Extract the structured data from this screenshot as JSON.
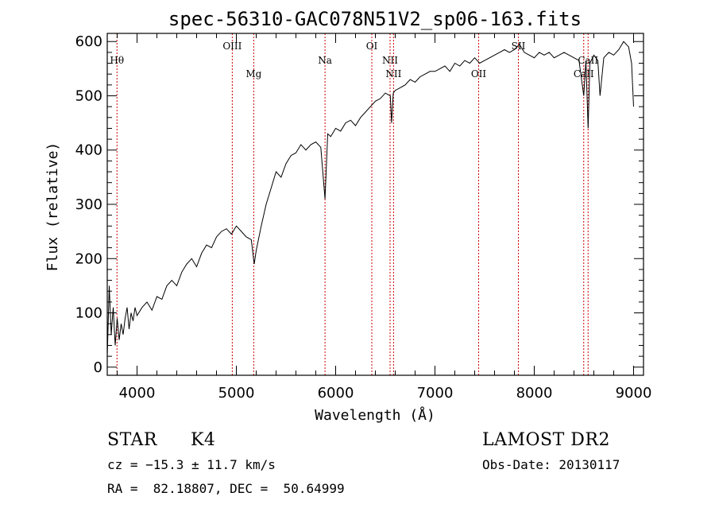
{
  "chart_data": {
    "type": "line",
    "title": "spec-56310-GAC078N51V2_sp06-163.fits",
    "xlabel": "Wavelength (Å)",
    "ylabel": "Flux (relative)",
    "xlim": [
      3700,
      9100
    ],
    "ylim": [
      -15,
      615
    ],
    "x_ticks": [
      4000,
      5000,
      6000,
      7000,
      8000,
      9000
    ],
    "y_ticks": [
      0,
      100,
      200,
      300,
      400,
      500,
      600
    ],
    "series": [
      {
        "x": [
          3700,
          3720,
          3740,
          3760,
          3780,
          3800,
          3820,
          3840,
          3860,
          3880,
          3900,
          3920,
          3940,
          3960,
          3980,
          4000,
          4050,
          4100,
          4150,
          4200,
          4250,
          4300,
          4350,
          4400,
          4450,
          4500,
          4550,
          4600,
          4650,
          4700,
          4750,
          4800,
          4850,
          4900,
          4950,
          5000,
          5050,
          5100,
          5150,
          5180,
          5200,
          5250,
          5300,
          5350,
          5400,
          5450,
          5500,
          5550,
          5600,
          5650,
          5700,
          5750,
          5800,
          5850,
          5893,
          5920,
          5950,
          6000,
          6050,
          6100,
          6150,
          6200,
          6250,
          6300,
          6350,
          6400,
          6450,
          6500,
          6550,
          6563,
          6580,
          6600,
          6650,
          6700,
          6750,
          6800,
          6850,
          6900,
          6950,
          7000,
          7050,
          7100,
          7150,
          7200,
          7250,
          7300,
          7350,
          7400,
          7450,
          7500,
          7550,
          7600,
          7650,
          7700,
          7750,
          7800,
          7850,
          7900,
          7950,
          8000,
          8050,
          8100,
          8150,
          8200,
          8250,
          8300,
          8350,
          8400,
          8450,
          8498,
          8520,
          8542,
          8560,
          8600,
          8640,
          8662,
          8700,
          8750,
          8800,
          8850,
          8900,
          8950,
          8980,
          9000
        ],
        "y": [
          20,
          150,
          60,
          110,
          40,
          90,
          50,
          80,
          60,
          90,
          110,
          70,
          100,
          85,
          110,
          95,
          110,
          120,
          105,
          130,
          125,
          150,
          160,
          150,
          175,
          190,
          200,
          185,
          210,
          225,
          220,
          240,
          250,
          255,
          245,
          260,
          250,
          240,
          235,
          190,
          215,
          260,
          300,
          330,
          360,
          350,
          375,
          390,
          395,
          410,
          400,
          410,
          415,
          405,
          310,
          430,
          425,
          440,
          435,
          450,
          455,
          445,
          460,
          470,
          480,
          490,
          495,
          505,
          500,
          450,
          505,
          510,
          515,
          520,
          530,
          525,
          535,
          540,
          545,
          545,
          550,
          555,
          545,
          560,
          555,
          565,
          560,
          570,
          560,
          565,
          570,
          575,
          580,
          585,
          580,
          585,
          595,
          580,
          575,
          570,
          580,
          575,
          580,
          570,
          575,
          580,
          575,
          570,
          565,
          500,
          565,
          440,
          560,
          575,
          565,
          500,
          570,
          580,
          575,
          585,
          600,
          590,
          560,
          480
        ]
      }
    ],
    "lines": [
      {
        "label": "Hθ",
        "x": 3798,
        "row": 1
      },
      {
        "label": "OIII",
        "x": 4959,
        "row": 0
      },
      {
        "label": "Mg",
        "x": 5175,
        "row": 2
      },
      {
        "label": "Na",
        "x": 5893,
        "row": 1
      },
      {
        "label": "OI",
        "x": 6364,
        "row": 0
      },
      {
        "label": "NII",
        "x": 6548,
        "row": 1
      },
      {
        "label": "NII",
        "x": 6583,
        "row": 2
      },
      {
        "label": "OII",
        "x": 7440,
        "row": 2
      },
      {
        "label": "SII",
        "x": 7840,
        "row": 0
      },
      {
        "label": "CaII",
        "x": 8498,
        "row": 2
      },
      {
        "label": "CaII",
        "x": 8542,
        "row": 1
      }
    ]
  },
  "footer": {
    "object_class": "STAR",
    "subclass": "K4",
    "survey": "LAMOST DR2",
    "cz": "cz = −15.3 ± 11.7 km/s",
    "obs_date": "Obs-Date: 20130117",
    "coords": "RA =  82.18807, DEC =  50.64999"
  },
  "colors": {
    "line_marker": "#cc0000",
    "spectrum": "#000000",
    "axes": "#000000"
  }
}
